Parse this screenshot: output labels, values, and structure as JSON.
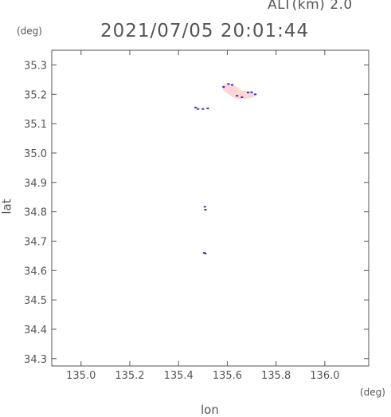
{
  "chart_data": {
    "type": "scatter",
    "title": "2021/07/05 20:01:44",
    "subtitle": "ALT(km) 2.0",
    "xlabel": "lon",
    "ylabel": "lat",
    "xunit": "(deg)",
    "yunit": "(deg)",
    "xlim": [
      134.88,
      136.18
    ],
    "ylim": [
      34.275,
      35.35
    ],
    "xticks": [
      135.0,
      135.2,
      135.4,
      135.6,
      135.8,
      136.0
    ],
    "xtick_labels": [
      "135.0",
      "135.2",
      "135.4",
      "135.6",
      "135.8",
      "136.0"
    ],
    "yticks": [
      34.3,
      34.4,
      34.5,
      34.6,
      34.7,
      34.8,
      34.9,
      35.0,
      35.1,
      35.2,
      35.3
    ],
    "ytick_labels": [
      "34.3",
      "34.4",
      "34.5",
      "34.6",
      "34.7",
      "34.8",
      "34.9",
      "35.0",
      "35.1",
      "35.2",
      "35.3"
    ],
    "grid": false,
    "series": [
      {
        "color": "#3333cc",
        "points": [
          [
            135.47,
            35.155
          ],
          [
            135.48,
            35.15
          ],
          [
            135.5,
            35.15
          ],
          [
            135.52,
            35.152
          ],
          [
            135.585,
            35.225
          ],
          [
            135.605,
            35.235
          ],
          [
            135.62,
            35.232
          ],
          [
            135.64,
            35.195
          ],
          [
            135.66,
            35.19
          ],
          [
            135.685,
            35.206
          ],
          [
            135.7,
            35.207
          ],
          [
            135.715,
            35.2
          ],
          [
            135.508,
            34.817
          ],
          [
            135.51,
            34.807
          ],
          [
            135.505,
            34.66
          ],
          [
            135.51,
            34.658
          ]
        ]
      }
    ],
    "regions": [
      {
        "color": "#ffd6d6",
        "polygon": [
          [
            135.575,
            35.228
          ],
          [
            135.6,
            35.238
          ],
          [
            135.625,
            35.233
          ],
          [
            135.66,
            35.212
          ],
          [
            135.7,
            35.21
          ],
          [
            135.72,
            35.197
          ],
          [
            135.7,
            35.188
          ],
          [
            135.66,
            35.183
          ],
          [
            135.635,
            35.185
          ],
          [
            135.605,
            35.2
          ],
          [
            135.585,
            35.212
          ]
        ]
      }
    ]
  }
}
